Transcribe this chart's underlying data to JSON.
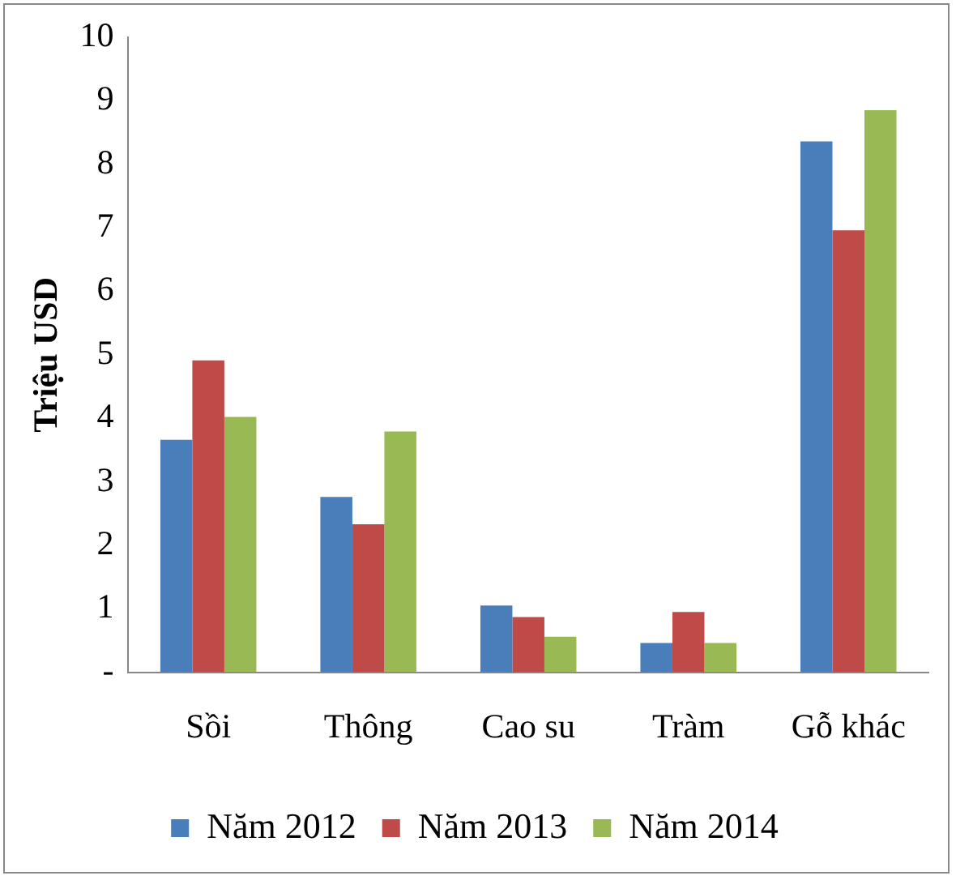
{
  "chart_data": {
    "type": "bar",
    "ylabel": "Triệu USD",
    "categories": [
      "Sồi",
      "Thông",
      "Cao su",
      "Tràm",
      "Gỗ khác"
    ],
    "series": [
      {
        "name": "Năm 2012",
        "color": "#4a7ebb",
        "values": [
          3.66,
          2.76,
          1.05,
          0.46,
          8.36
        ]
      },
      {
        "name": "Năm 2013",
        "color": "#be4b48",
        "values": [
          4.91,
          2.33,
          0.87,
          0.95,
          6.96
        ]
      },
      {
        "name": "Năm 2014",
        "color": "#98b954",
        "values": [
          4.02,
          3.79,
          0.56,
          0.46,
          8.85
        ]
      }
    ],
    "ylim": [
      0,
      10
    ],
    "yticks": [
      {
        "value": 0,
        "label": "-"
      },
      1,
      2,
      3,
      4,
      5,
      6,
      7,
      8,
      9,
      10
    ],
    "grid": false,
    "legend": "bottom"
  }
}
